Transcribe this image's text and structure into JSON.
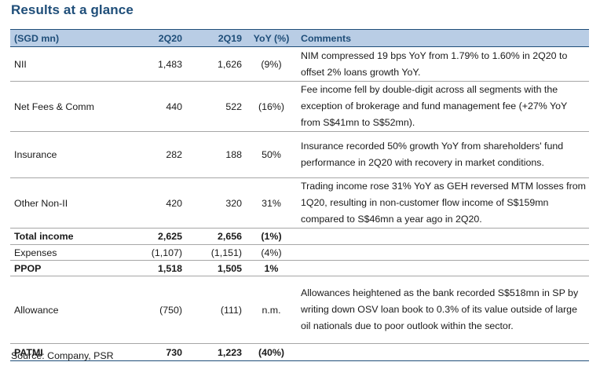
{
  "title": "Results at a glance",
  "headers": {
    "label": "(SGD mn)",
    "q2_20": "2Q20",
    "q2_19": "2Q19",
    "yoy": "YoY (%)",
    "comments": "Comments"
  },
  "rows": [
    {
      "label": "NII",
      "q2_20": "1,483",
      "q2_19": "1,626",
      "yoy": "(9%)",
      "comment": "NIM compressed 19 bps YoY from 1.79% to 1.60% in 2Q20 to offset 2% loans growth YoY."
    },
    {
      "label": "Net Fees & Comm",
      "q2_20": "440",
      "q2_19": "522",
      "yoy": "(16%)",
      "comment": "Fee income fell by double-digit across all segments with the exception of brokerage and fund management fee (+27% YoY from S$41mn to S$52mn)."
    },
    {
      "label": "Insurance",
      "q2_20": "282",
      "q2_19": "188",
      "yoy": "50%",
      "comment": "Insurance recorded 50% growth YoY from shareholders' fund performance in 2Q20 with recovery in market conditions."
    },
    {
      "label": "Other Non-II",
      "q2_20": "420",
      "q2_19": "320",
      "yoy": "31%",
      "comment": "Trading income rose 31% YoY as GEH reversed MTM losses from 1Q20, resulting in non-customer flow income of S$159mn compared to S$46mn a year ago in 2Q20."
    },
    {
      "label": "Total income",
      "q2_20": "2,625",
      "q2_19": "2,656",
      "yoy": "(1%)",
      "comment": ""
    },
    {
      "label": "Expenses",
      "q2_20": "(1,107)",
      "q2_19": "(1,151)",
      "yoy": "(4%)",
      "comment": ""
    },
    {
      "label": "PPOP",
      "q2_20": "1,518",
      "q2_19": "1,505",
      "yoy": "1%",
      "comment": ""
    },
    {
      "label": "Allowance",
      "q2_20": "(750)",
      "q2_19": "(111)",
      "yoy": "n.m.",
      "comment": "Allowances heightened as the bank recorded S$518mn in SP by writing down OSV loan book to 0.3% of its value outside of large oil nationals due to poor outlook within the sector."
    },
    {
      "label": "PATMI",
      "q2_20": "730",
      "q2_19": "1,223",
      "yoy": "(40%)",
      "comment": ""
    }
  ],
  "source": "Source: Company, PSR",
  "colors": {
    "header_bg": "#b9cde5",
    "header_text": "#1f4e79",
    "title": "#1f4e79"
  }
}
